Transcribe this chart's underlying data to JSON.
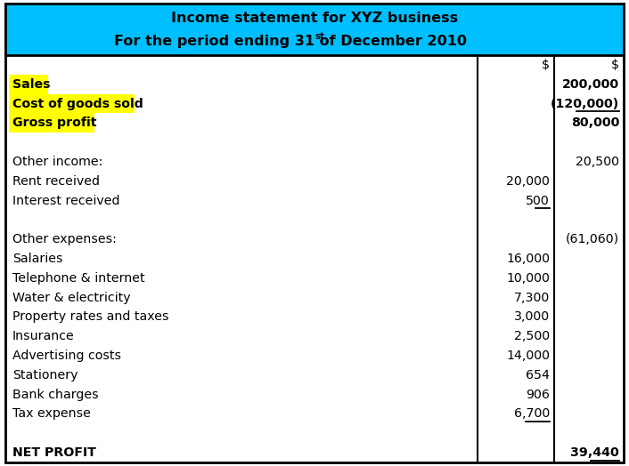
{
  "title_line1": "Income statement for XYZ business",
  "title_line2_pre": "For the period ending 31",
  "title_line2_sup": "st",
  "title_line2_post": " of December 2010",
  "header_bg": "#00BFFF",
  "yellow_highlight": "#FFFF00",
  "rows": [
    {
      "label": "",
      "col1": "$",
      "col2": "$",
      "bold": false,
      "highlight": false,
      "ul1": false,
      "ul2": false
    },
    {
      "label": "Sales",
      "col1": "",
      "col2": "200,000",
      "bold": true,
      "highlight": true,
      "ul1": false,
      "ul2": false
    },
    {
      "label": "Cost of goods sold",
      "col1": "",
      "col2": "(120,000)",
      "bold": true,
      "highlight": true,
      "ul1": false,
      "ul2": true
    },
    {
      "label": "Gross profit",
      "col1": "",
      "col2": "80,000",
      "bold": true,
      "highlight": true,
      "ul1": false,
      "ul2": false
    },
    {
      "label": "",
      "col1": "",
      "col2": "",
      "bold": false,
      "highlight": false,
      "ul1": false,
      "ul2": false
    },
    {
      "label": "Other income:",
      "col1": "",
      "col2": "20,500",
      "bold": false,
      "highlight": false,
      "ul1": false,
      "ul2": false
    },
    {
      "label": "Rent received",
      "col1": "20,000",
      "col2": "",
      "bold": false,
      "highlight": false,
      "ul1": false,
      "ul2": false
    },
    {
      "label": "Interest received",
      "col1": "500",
      "col2": "",
      "bold": false,
      "highlight": false,
      "ul1": true,
      "ul2": false
    },
    {
      "label": "",
      "col1": "",
      "col2": "",
      "bold": false,
      "highlight": false,
      "ul1": false,
      "ul2": false
    },
    {
      "label": "Other expenses:",
      "col1": "",
      "col2": "(61,060)",
      "bold": false,
      "highlight": false,
      "ul1": false,
      "ul2": false
    },
    {
      "label": "Salaries",
      "col1": "16,000",
      "col2": "",
      "bold": false,
      "highlight": false,
      "ul1": false,
      "ul2": false
    },
    {
      "label": "Telephone & internet",
      "col1": "10,000",
      "col2": "",
      "bold": false,
      "highlight": false,
      "ul1": false,
      "ul2": false
    },
    {
      "label": "Water & electricity",
      "col1": "7,300",
      "col2": "",
      "bold": false,
      "highlight": false,
      "ul1": false,
      "ul2": false
    },
    {
      "label": "Property rates and taxes",
      "col1": "3,000",
      "col2": "",
      "bold": false,
      "highlight": false,
      "ul1": false,
      "ul2": false
    },
    {
      "label": "Insurance",
      "col1": "2,500",
      "col2": "",
      "bold": false,
      "highlight": false,
      "ul1": false,
      "ul2": false
    },
    {
      "label": "Advertising costs",
      "col1": "14,000",
      "col2": "",
      "bold": false,
      "highlight": false,
      "ul1": false,
      "ul2": false
    },
    {
      "label": "Stationery",
      "col1": "654",
      "col2": "",
      "bold": false,
      "highlight": false,
      "ul1": false,
      "ul2": false
    },
    {
      "label": "Bank charges",
      "col1": "906",
      "col2": "",
      "bold": false,
      "highlight": false,
      "ul1": false,
      "ul2": false
    },
    {
      "label": "Tax expense",
      "col1": "6,700",
      "col2": "",
      "bold": false,
      "highlight": false,
      "ul1": true,
      "ul2": false
    },
    {
      "label": "",
      "col1": "",
      "col2": "",
      "bold": false,
      "highlight": false,
      "ul1": false,
      "ul2": false
    },
    {
      "label": "NET PROFIT",
      "col1": "",
      "col2": "39,440",
      "bold": true,
      "highlight": false,
      "ul1": false,
      "ul2": true,
      "double_ul2": true
    }
  ]
}
